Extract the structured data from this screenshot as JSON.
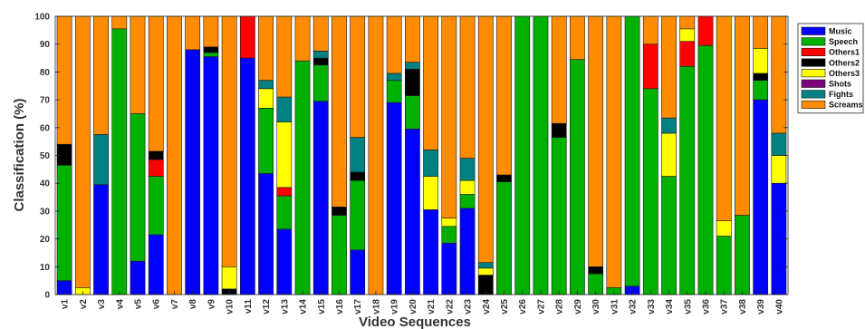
{
  "chart_data": {
    "type": "bar",
    "stacked": true,
    "title": "",
    "xlabel": "Video Sequences",
    "ylabel": "Classification (%)",
    "ylim": [
      0,
      100
    ],
    "yticks": [
      0,
      10,
      20,
      30,
      40,
      50,
      60,
      70,
      80,
      90,
      100
    ],
    "grid": false,
    "legend_position": "top-right",
    "categories": [
      "v1",
      "v2",
      "v3",
      "v4",
      "v5",
      "v6",
      "v7",
      "v8",
      "v9",
      "v10",
      "v11",
      "v12",
      "v13",
      "v14",
      "v15",
      "v16",
      "v17",
      "v18",
      "v19",
      "v20",
      "v21",
      "v22",
      "v23",
      "v24",
      "v25",
      "v26",
      "v27",
      "v28",
      "v29",
      "v30",
      "v31",
      "v32",
      "v33",
      "v34",
      "v35",
      "v36",
      "v37",
      "v38",
      "v39",
      "v40"
    ],
    "series": [
      {
        "name": "Music",
        "color": "#0000ff",
        "values": [
          5,
          0,
          39.5,
          0,
          12,
          21.5,
          0,
          88,
          85.5,
          0,
          85,
          43.5,
          23.5,
          0,
          69.5,
          0,
          16,
          0,
          69,
          59.5,
          30.5,
          18.5,
          31,
          0,
          0,
          0,
          0,
          0,
          0,
          0,
          0,
          3,
          0,
          0,
          0,
          0,
          0,
          0,
          70,
          40
        ]
      },
      {
        "name": "Speech",
        "color": "#00b000",
        "values": [
          41.5,
          0,
          0,
          95.5,
          53,
          21,
          0,
          0,
          1.5,
          0,
          0,
          23.5,
          12,
          84,
          13,
          28.5,
          25,
          0,
          8,
          12,
          0,
          6,
          5,
          0,
          40.5,
          100,
          100,
          56.5,
          84.5,
          7.5,
          2.5,
          97,
          74,
          42.5,
          82,
          89.5,
          21,
          28.5,
          7,
          0
        ]
      },
      {
        "name": "Others1",
        "color": "#ff0000",
        "values": [
          0,
          0,
          0,
          0,
          0,
          6,
          0,
          0,
          0,
          0,
          15,
          0,
          3,
          0,
          0,
          0,
          0,
          0,
          0,
          0,
          0,
          0,
          0,
          0,
          0,
          0,
          0,
          0,
          0,
          0,
          0,
          0,
          16,
          0,
          9,
          10.5,
          0,
          0,
          0,
          0
        ]
      },
      {
        "name": "Others2",
        "color": "#000000",
        "values": [
          7.5,
          0,
          0,
          0,
          0,
          3,
          0,
          0,
          2,
          2,
          0,
          0,
          0,
          0,
          2.5,
          3,
          3,
          0,
          0,
          9.5,
          0,
          0,
          0,
          7,
          2.5,
          0,
          0,
          5,
          0,
          2.5,
          0,
          0,
          0,
          0,
          0,
          0,
          0,
          0,
          2.5,
          0
        ]
      },
      {
        "name": "Others3",
        "color": "#ffff00",
        "values": [
          0,
          2.5,
          0,
          0,
          0,
          0,
          0,
          0,
          0,
          8,
          0,
          7,
          23.5,
          0,
          0,
          0,
          0,
          0,
          0,
          0,
          12,
          3,
          5,
          2.5,
          0,
          0,
          0,
          0,
          0,
          0,
          0,
          0,
          0,
          15.5,
          4.5,
          0,
          5.5,
          0,
          9,
          10
        ]
      },
      {
        "name": "Shots",
        "color": "#7f007f",
        "values": [
          0,
          0,
          0,
          0,
          0,
          0,
          0,
          0,
          0,
          0,
          0,
          0,
          0,
          0,
          0,
          0,
          0,
          0,
          0,
          0,
          0,
          0,
          0,
          0,
          0,
          0,
          0,
          0,
          0,
          0,
          0,
          0,
          0,
          0,
          0,
          0,
          0,
          0,
          0,
          0
        ]
      },
      {
        "name": "Fights",
        "color": "#008080",
        "values": [
          0,
          0,
          18,
          0,
          0,
          0,
          0,
          0,
          0,
          0,
          0,
          3,
          9,
          0,
          2.5,
          0,
          12.5,
          0,
          2.5,
          2.5,
          9.5,
          0,
          8,
          2,
          0,
          0,
          0,
          0,
          0,
          0,
          0,
          0,
          0,
          5.5,
          0,
          0,
          0,
          0,
          0,
          8
        ]
      },
      {
        "name": "Screams",
        "color": "#ff8c00",
        "values": [
          46,
          97.5,
          42.5,
          4.5,
          35,
          48.5,
          100,
          12,
          11,
          90,
          0,
          23,
          29,
          16,
          12.5,
          68.5,
          43.5,
          100,
          20.5,
          16.5,
          48,
          72.5,
          51,
          88.5,
          57,
          0,
          0,
          38.5,
          15.5,
          90,
          97.5,
          0,
          10,
          36.5,
          4.5,
          0,
          73.5,
          71.5,
          11.5,
          42
        ]
      }
    ]
  }
}
